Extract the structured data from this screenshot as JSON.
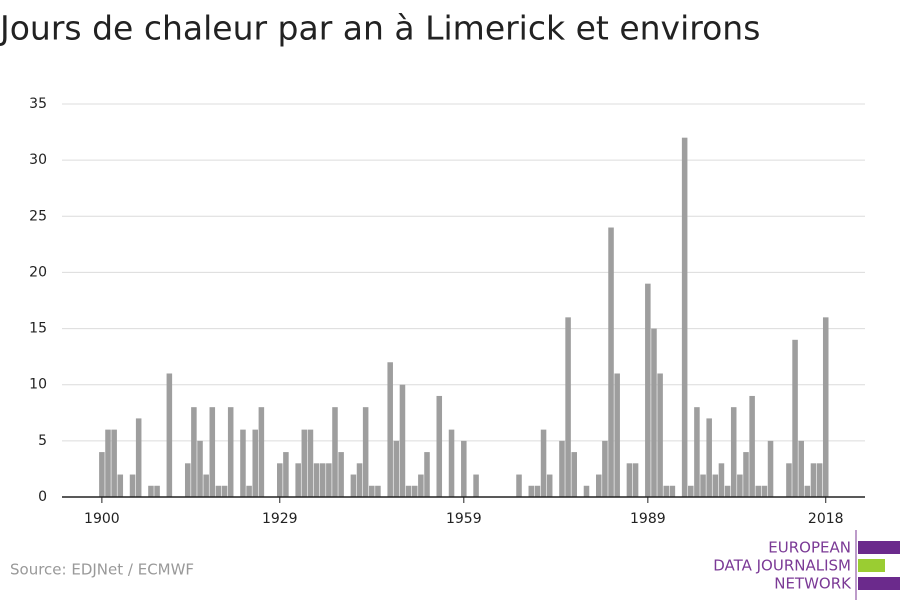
{
  "chart_data": {
    "type": "bar",
    "title": "Jours de chaleur par an à Limerick et environs",
    "source": "Source: EDJNet / ECMWF",
    "logo": [
      "EUROPEAN",
      "DATA JOURNALISM",
      "NETWORK"
    ],
    "color": "#9e9e9e",
    "x": [
      1900,
      1901,
      1902,
      1903,
      1904,
      1905,
      1906,
      1907,
      1908,
      1909,
      1910,
      1911,
      1912,
      1913,
      1914,
      1915,
      1916,
      1917,
      1918,
      1919,
      1920,
      1921,
      1922,
      1923,
      1924,
      1925,
      1926,
      1927,
      1928,
      1929,
      1930,
      1931,
      1932,
      1933,
      1934,
      1935,
      1936,
      1937,
      1938,
      1939,
      1940,
      1941,
      1942,
      1943,
      1944,
      1945,
      1946,
      1947,
      1948,
      1949,
      1950,
      1951,
      1952,
      1953,
      1954,
      1955,
      1956,
      1957,
      1958,
      1959,
      1960,
      1961,
      1962,
      1963,
      1964,
      1965,
      1966,
      1967,
      1968,
      1969,
      1970,
      1971,
      1972,
      1973,
      1974,
      1975,
      1976,
      1977,
      1978,
      1979,
      1980,
      1981,
      1982,
      1983,
      1984,
      1985,
      1986,
      1987,
      1988,
      1989,
      1990,
      1991,
      1992,
      1993,
      1994,
      1995,
      1996,
      1997,
      1998,
      1999,
      2000,
      2001,
      2002,
      2003,
      2004,
      2005,
      2006,
      2007,
      2008,
      2009,
      2010,
      2011,
      2012,
      2013,
      2014,
      2015,
      2016,
      2017,
      2018
    ],
    "values": [
      4,
      6,
      6,
      2,
      0,
      2,
      7,
      0,
      1,
      1,
      0,
      11,
      0,
      0,
      3,
      8,
      5,
      2,
      8,
      1,
      1,
      8,
      0,
      6,
      1,
      6,
      8,
      0,
      0,
      3,
      4,
      0,
      3,
      6,
      6,
      3,
      3,
      3,
      8,
      4,
      0,
      2,
      3,
      8,
      1,
      1,
      0,
      12,
      5,
      10,
      1,
      1,
      2,
      4,
      0,
      9,
      0,
      6,
      0,
      5,
      0,
      2,
      0,
      0,
      0,
      0,
      0,
      0,
      2,
      0,
      1,
      1,
      6,
      2,
      0,
      5,
      16,
      4,
      0,
      1,
      0,
      2,
      5,
      24,
      11,
      0,
      3,
      3,
      0,
      19,
      15,
      11,
      1,
      1,
      0,
      32,
      1,
      8,
      2,
      7,
      2,
      3,
      1,
      8,
      2,
      4,
      9,
      1,
      1,
      5,
      0,
      0,
      3,
      14,
      5,
      1,
      3,
      3,
      16
    ],
    "xlim": [
      1893.5,
      2024.4
    ],
    "xticks": [
      1900,
      1929,
      1959,
      1989,
      2018
    ],
    "ylim": [
      0,
      35
    ],
    "yticks": [
      0,
      5,
      10,
      15,
      20,
      25,
      30,
      35
    ],
    "grid": true
  }
}
